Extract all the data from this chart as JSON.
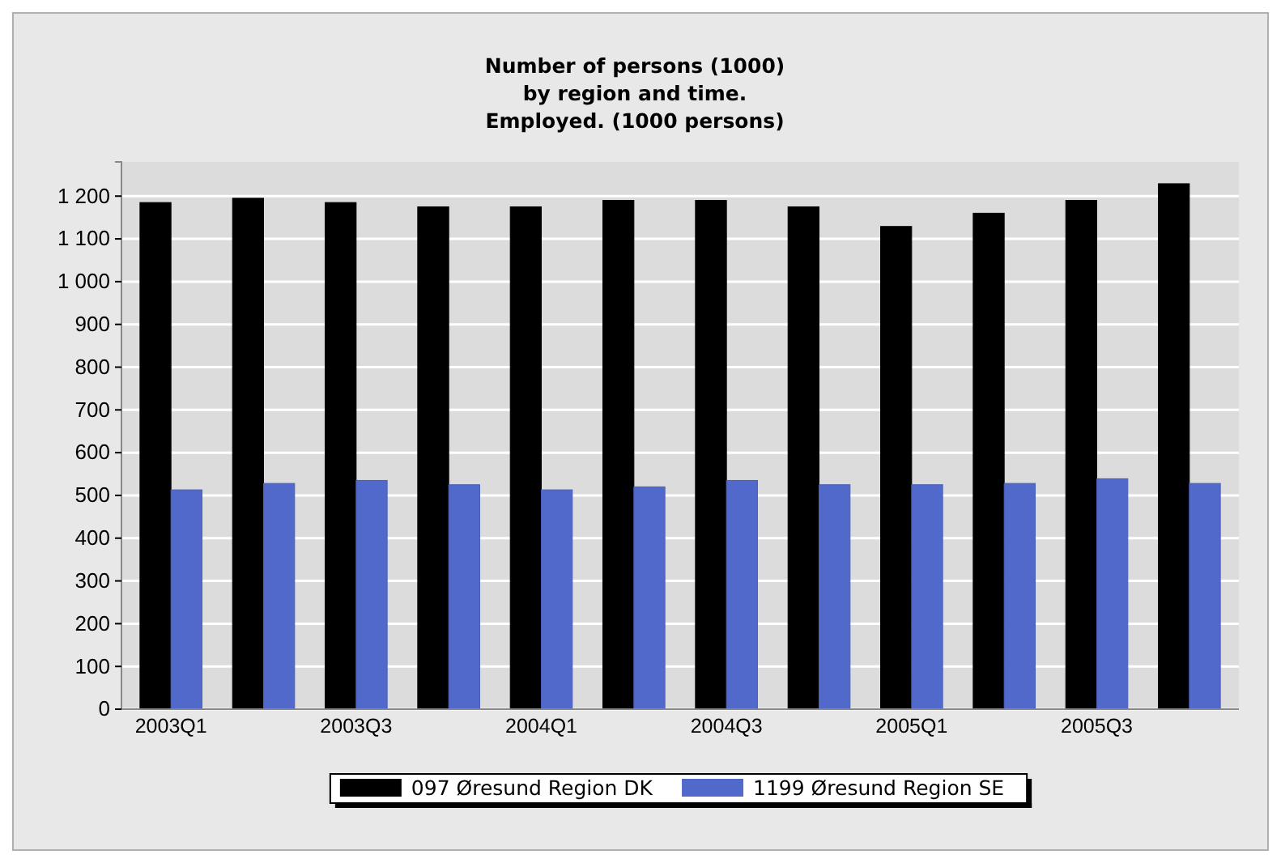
{
  "chart_data": {
    "type": "bar",
    "title": "Number of persons (1000)\nby region and time.\nEmployed. (1000 persons)",
    "categories": [
      "2003Q1",
      null,
      "2003Q3",
      null,
      "2004Q1",
      null,
      "2004Q3",
      null,
      "2005Q1",
      null,
      "2005Q3",
      null
    ],
    "series": [
      {
        "name": "097 Øresund Region DK",
        "color": "#000000",
        "values": [
          1185,
          1195,
          1185,
          1175,
          1175,
          1190,
          1190,
          1175,
          1129,
          1160,
          1190,
          1229
        ]
      },
      {
        "name": "1199 Øresund Region SE",
        "color": "#5269cc",
        "values": [
          513,
          528,
          535,
          525,
          513,
          520,
          535,
          525,
          525,
          528,
          539,
          528
        ]
      }
    ],
    "ylim": [
      0,
      1280
    ],
    "yticks": [
      0,
      100,
      200,
      300,
      400,
      500,
      600,
      700,
      800,
      900,
      {
        "value": 1000,
        "label": "1 000"
      },
      {
        "value": 1100,
        "label": "1 100"
      },
      {
        "value": 1200,
        "label": "1 200"
      }
    ],
    "grid": "y",
    "legend": "bottom"
  }
}
